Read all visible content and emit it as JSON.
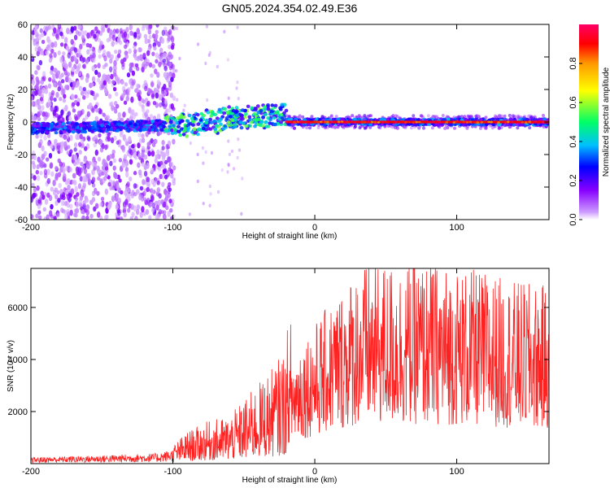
{
  "title": "GN05.2024.354.02.49.E36",
  "chart_data": [
    {
      "type": "heatmap",
      "xlabel": "Height of straight line (km)",
      "ylabel": "Frequency (Hz)",
      "xlim": [
        -200,
        165
      ],
      "ylim": [
        -60,
        60
      ],
      "xticks": [
        "-200",
        "-100",
        "0",
        "100"
      ],
      "yticks": [
        "60",
        "40",
        "20",
        "0",
        "-20",
        "-40",
        "-60"
      ],
      "colorbar": {
        "label": "Normalized spectral amplitude",
        "range": [
          0,
          1
        ],
        "ticks": [
          "0.0",
          "0.2",
          "0.4",
          "0.6",
          "0.8"
        ],
        "colors": [
          "#ffffff",
          "#cc99ff",
          "#8800ff",
          "#0000ff",
          "#00bfff",
          "#00ff66",
          "#ffff00",
          "#ff9900",
          "#ff0000",
          "#ff0066"
        ]
      },
      "features": {
        "noise_region_x": [
          -200,
          -105
        ],
        "band_center_hz": 0,
        "band_transition_x": [
          -100,
          -20
        ],
        "band_transition_offset_hz": 5,
        "strong_line_start_x": -20,
        "strong_line_amplitude": 0.9
      }
    },
    {
      "type": "line",
      "xlabel": "Height of straight line (km)",
      "ylabel": "SNR (10 * v/v)",
      "xlim": [
        -200,
        165
      ],
      "ylim": [
        0,
        7500
      ],
      "xticks": [
        "-200",
        "-100",
        "0",
        "100"
      ],
      "yticks": [
        "2000",
        "4000",
        "6000"
      ],
      "color": "#ff2020",
      "envelope": {
        "x": [
          -200,
          -150,
          -110,
          -100,
          -90,
          -75,
          -60,
          -50,
          -40,
          -30,
          -20,
          -15,
          -10,
          0,
          10,
          20,
          30,
          40,
          50,
          60,
          80,
          100,
          120,
          140,
          165
        ],
        "y": [
          150,
          200,
          250,
          350,
          600,
          800,
          900,
          1200,
          1500,
          1800,
          2200,
          2400,
          2700,
          3000,
          3400,
          3800,
          4200,
          4300,
          4300,
          4300,
          4300,
          4200,
          4100,
          3900,
          3800
        ]
      }
    }
  ]
}
